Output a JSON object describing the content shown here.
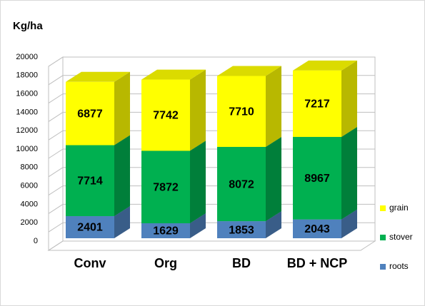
{
  "chart_data": {
    "type": "bar3d_stacked",
    "y_axis_label": "Kg/ha",
    "categories": [
      "Conv",
      "Org",
      "BD",
      "BD + NCP"
    ],
    "series": [
      {
        "name": "roots",
        "color": "#4f81bd",
        "values": [
          2401,
          1629,
          1853,
          2043
        ]
      },
      {
        "name": "stover",
        "color": "#00b050",
        "values": [
          7714,
          7872,
          8072,
          8967
        ]
      },
      {
        "name": "grain",
        "color": "#ffff00",
        "values": [
          6877,
          7742,
          7710,
          7217
        ]
      }
    ],
    "ylim": [
      0,
      20000
    ],
    "yticks": [
      0,
      2000,
      4000,
      6000,
      8000,
      10000,
      12000,
      14000,
      16000,
      18000,
      20000
    ],
    "grid": true,
    "legend": "right"
  }
}
